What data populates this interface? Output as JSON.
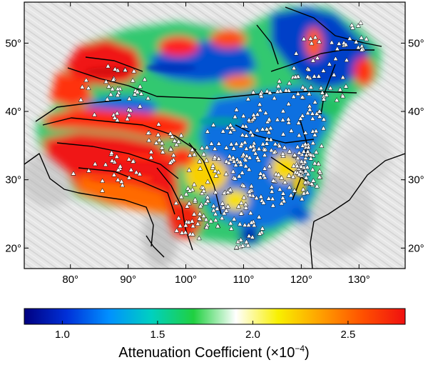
{
  "map": {
    "lon_range": [
      72,
      138
    ],
    "lat_range": [
      17,
      56
    ],
    "lon_ticks": [
      80,
      90,
      100,
      110,
      120,
      130
    ],
    "lat_ticks": [
      20,
      30,
      40,
      50
    ],
    "lon_tick_labels": [
      "80°",
      "90°",
      "100°",
      "110°",
      "120°",
      "130°"
    ],
    "lat_tick_labels": [
      "20°",
      "30°",
      "40°",
      "50°"
    ],
    "layers": [
      "shaded-relief-background",
      "attenuation-field",
      "fault-lines",
      "station-triangles"
    ]
  },
  "colorbar": {
    "range": [
      0.8,
      2.8
    ],
    "ticks": [
      1.0,
      1.5,
      2.0,
      2.5
    ],
    "tick_labels": [
      "1.0",
      "1.5",
      "2.0",
      "2.5"
    ],
    "label": "Attenuation Coefficient (×10",
    "label_exponent": "−4",
    "label_close": ")",
    "colors": [
      "#000080",
      "#0030d8",
      "#0090ff",
      "#00d0c0",
      "#20d040",
      "#ffffff",
      "#f8f000",
      "#ffa000",
      "#ff5000",
      "#f01010"
    ]
  }
}
